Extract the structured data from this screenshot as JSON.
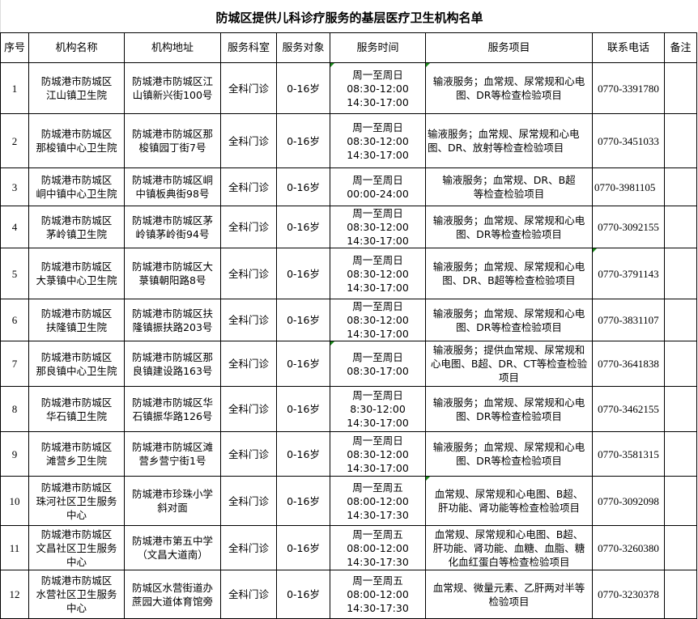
{
  "title": "防城区提供儿科诊疗服务的基层医疗卫生机构名单",
  "headers": [
    "序号",
    "机构名称",
    "机构地址",
    "服务科室",
    "服务对象",
    "服务时间",
    "服务项目",
    "联系电话",
    "备注"
  ],
  "rows": [
    {
      "seq": "1",
      "name": "防城港市防城区\n江山镇卫生院",
      "address": "防城港市防城区江\n山镇新兴街100号",
      "dept": "全科门诊",
      "target": "0-16岁",
      "time": "周一至周日\n08:30-12:00\n14:30-17:00",
      "items": "输液服务；血常规、尿常规和心电\n图、DR等检查检验项目",
      "phone": "0770-3391780",
      "note": ""
    },
    {
      "seq": "2",
      "name": "防城港市防城区\n那梭镇中心卫生院",
      "address": "防城港市防城区那\n梭镇园丁街7号",
      "dept": "全科门诊",
      "target": "0-16岁",
      "time": "周一至周日\n08:30-12:00\n14:30-17:00",
      "items": "输液服务；血常规、尿常规和心电\n图、DR、放射等检查检验项目",
      "phone": "0770-3451033",
      "note": ""
    },
    {
      "seq": "3",
      "name": "防城港市防城区\n峒中镇中心卫生院",
      "address": "防城港市防城区峒\n中镇板典街98号",
      "dept": "全科门诊",
      "target": "0-16岁",
      "time": "周一至周日\n00:00-24:00",
      "items": "输液服务；血常规、DR、B超\n等检查检验项目",
      "phone": "0770-3981105",
      "note": ""
    },
    {
      "seq": "4",
      "name": "防城港市防城区\n茅岭镇卫生院",
      "address": "防城港市防城区茅\n岭镇茅岭街94号",
      "dept": "全科门诊",
      "target": "0-16岁",
      "time": "周一至周日\n08:30-12:00\n14:30-17:00",
      "items": "输液服务；血常规、尿常规和心电\n图、DR等检查检验项目",
      "phone": "0770-3092155",
      "note": ""
    },
    {
      "seq": "5",
      "name": "防城港市防城区\n大菉镇中心卫生院",
      "address": "防城港市防城区大\n菉镇朝阳路8号",
      "dept": "全科门诊",
      "target": "0-16岁",
      "time": "周一至周日\n08:30-12:00\n14:30-17:00",
      "items": "输液服务；血常规、尿常规和心电\n图、DR、B超等检查检验项目",
      "phone": "0770-3791143",
      "note": ""
    },
    {
      "seq": "6",
      "name": "防城港市防城区\n扶隆镇卫生院",
      "address": "防城港市防城区扶\n隆镇振扶路203号",
      "dept": "全科门诊",
      "target": "0-16岁",
      "time": "周一至周日\n08:30-12:00\n14:30-17:00",
      "items": "输液服务；血常规、尿常规和心电\n图、DR等检查检验项目",
      "phone": "0770-3831107",
      "note": ""
    },
    {
      "seq": "7",
      "name": "防城港市防城区\n那良镇中心卫生院",
      "address": "防城港市防城区那\n良镇建设路163号",
      "dept": "全科门诊",
      "target": "0-16岁",
      "time": "周一至周日\n08:30-17:00",
      "items": "输液服务；提供血常规、尿常规和\n心电图、B超、DR、CT等检查检验\n项目",
      "phone": "0770-3641838",
      "note": ""
    },
    {
      "seq": "8",
      "name": "防城港市防城区\n华石镇卫生院",
      "address": "防城港市防城区华\n石镇振华路126号",
      "dept": "全科门诊",
      "target": "0-16岁",
      "time": "周一至周日\n8:30-12:00\n14:30-17:00",
      "items": "输液服务；血常规、尿常规和心电\n图、DR等检查检验项目",
      "phone": "0770-3462155",
      "note": ""
    },
    {
      "seq": "9",
      "name": "防城港市防城区\n滩营乡卫生院",
      "address": "防城港市防城区滩\n营乡营宁街1号",
      "dept": "全科门诊",
      "target": "0-16岁",
      "time": "周一至周日\n08:30-12:00\n14:30-17:00",
      "items": "输液服务；血常规、尿常规和心电\n图、DR等检查检验项目",
      "phone": "0770-3581315",
      "note": ""
    },
    {
      "seq": "10",
      "name": "防城港市防城区\n珠河社区卫生服务\n中心",
      "address": "防城港市珍珠小学\n斜对面",
      "dept": "全科门诊",
      "target": "0-16岁",
      "time": "周一至周五\n08:00-12:00\n14:30-17:30",
      "items": "血常规、尿常规和心电图、B超、\n肝功能、肾功能等检查检验项目",
      "phone": "0770-3092098",
      "note": ""
    },
    {
      "seq": "11",
      "name": "防城港市防城区\n文昌社区卫生服务\n中心",
      "address": "防城港市第五中学\n（文昌大道南）",
      "dept": "全科门诊",
      "target": "0-16岁",
      "time": "周一至周五\n08:00-12:00\n14:30-17:30",
      "items": "血常规、尿常规和心电图、B超、\n肝功能、肾功能、血糖、血脂、糖\n化血红蛋白等检查检验项目",
      "phone": "0770-3260380",
      "note": ""
    },
    {
      "seq": "12",
      "name": "防城港市防城区\n水营社区卫生服务\n中心",
      "address": "防城区水营街道办\n蔗园大道体育馆旁",
      "dept": "全科门诊",
      "target": "0-16岁",
      "time": "周一至周五\n08:00-12:00\n14:30-17:30",
      "items": "血常规、微量元素、乙肝两对半等\n检验项目",
      "phone": "0770-3230378",
      "note": ""
    }
  ]
}
